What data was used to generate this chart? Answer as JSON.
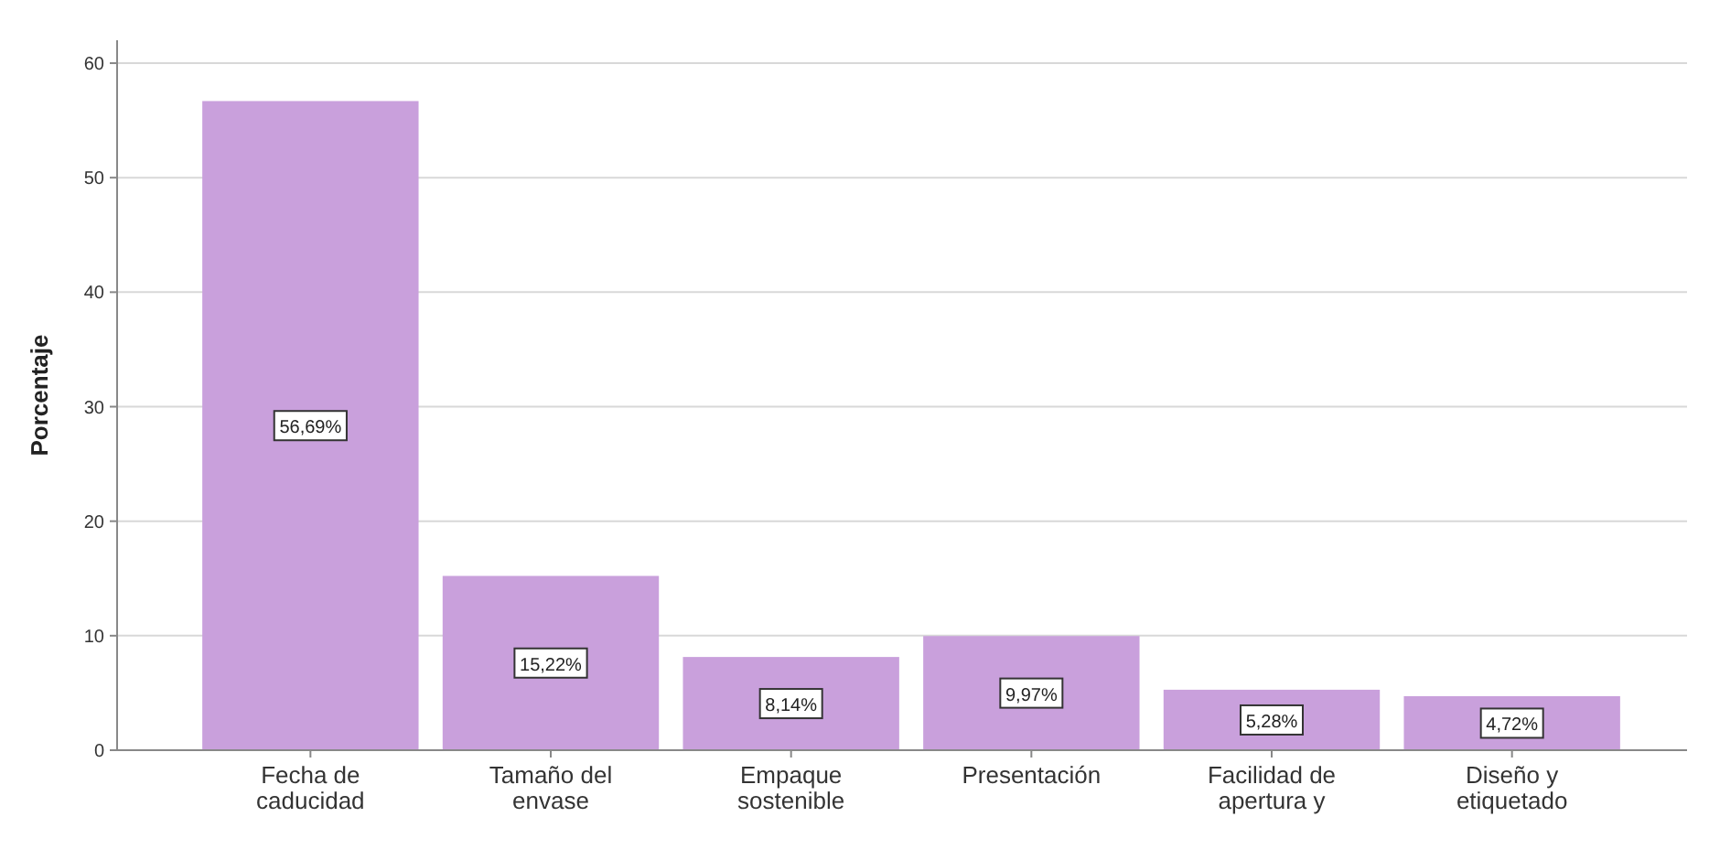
{
  "chart_data": {
    "type": "bar",
    "ylabel": "Porcentaje",
    "categories": [
      "Fecha de caducidad",
      "Tamaño del envase",
      "Empaque sostenible",
      "Presentación",
      "Facilidad de apertura y",
      "Diseño y etiquetado"
    ],
    "values": [
      56.69,
      15.22,
      8.14,
      9.97,
      5.28,
      4.72
    ],
    "value_labels": [
      "56,69%",
      "15,22%",
      "8,14%",
      "9,97%",
      "5,28%",
      "4,72%"
    ],
    "color": "#c9a0dc",
    "ylim": [
      0,
      62
    ],
    "yticks": [
      0,
      10,
      20,
      30,
      40,
      50,
      60
    ],
    "grid": "y"
  }
}
